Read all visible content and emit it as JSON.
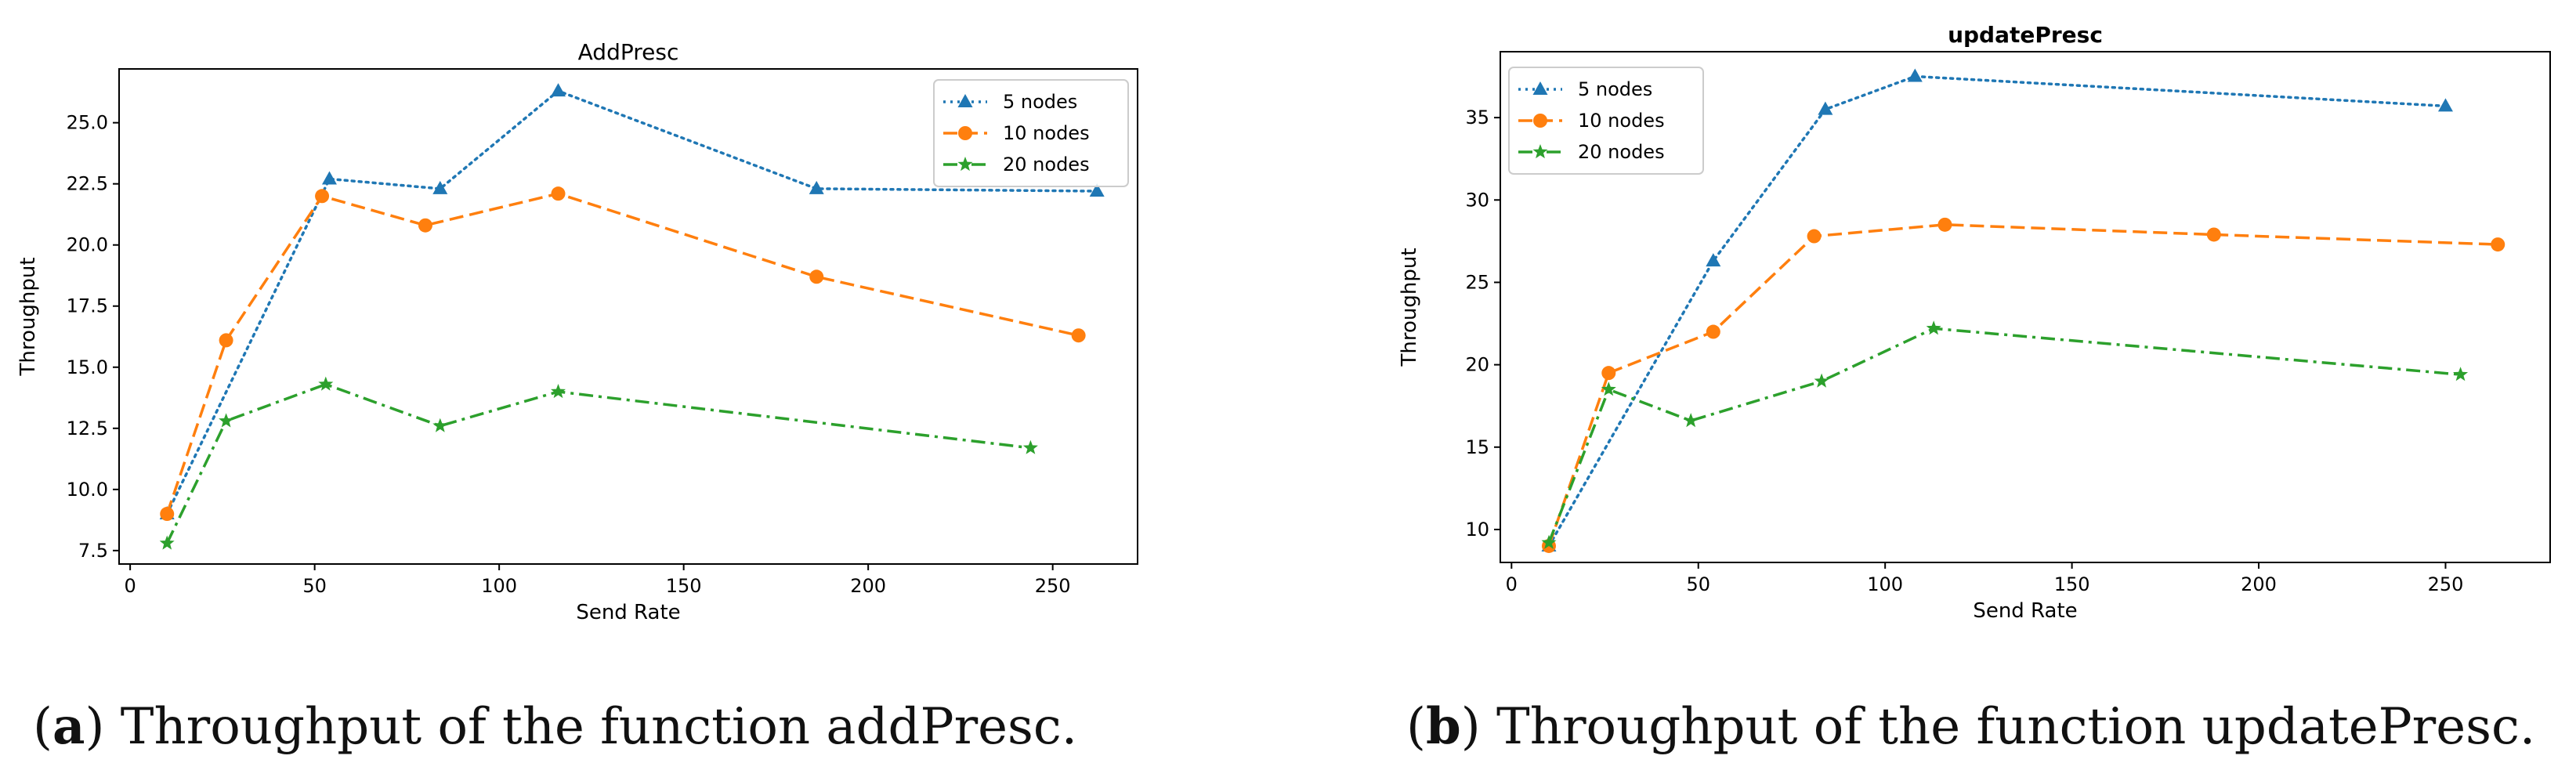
{
  "colors": {
    "s5": "#1f77b4",
    "s10": "#ff7f0e",
    "s20": "#2ca02c"
  },
  "captions": [
    {
      "label": "a",
      "open": "(",
      "close": ")",
      "text": " Throughput of the function addPresc."
    },
    {
      "label": "b",
      "open": "(",
      "close": ")",
      "text": " Throughput of the function updatePresc."
    }
  ],
  "chart_data": [
    {
      "type": "line",
      "title": "AddPresc",
      "xlabel": "Send Rate",
      "ylabel": "Throughput",
      "xlim": [
        -3,
        273
      ],
      "ylim": [
        6.95,
        27.2
      ],
      "xticks": [
        0,
        50,
        100,
        150,
        200,
        250
      ],
      "xtick_labels": [
        "0",
        "50",
        "100",
        "150",
        "200",
        "250"
      ],
      "yticks": [
        7.5,
        10.0,
        12.5,
        15.0,
        17.5,
        20.0,
        22.5,
        25.0
      ],
      "ytick_labels": [
        "7.5",
        "10.0",
        "12.5",
        "15.0",
        "17.5",
        "20.0",
        "22.5",
        "25.0"
      ],
      "legend_position": "top-right",
      "series": [
        {
          "name": "5 nodes",
          "marker": "triangle",
          "style": "dotted",
          "color_key": "s5",
          "x": [
            10,
            54,
            84,
            116,
            186,
            262
          ],
          "y": [
            9.0,
            22.7,
            22.3,
            26.3,
            22.3,
            22.2
          ]
        },
        {
          "name": "10 nodes",
          "marker": "circle",
          "style": "dashed",
          "color_key": "s10",
          "x": [
            10,
            26,
            52,
            80,
            116,
            186,
            257
          ],
          "y": [
            9.0,
            16.1,
            22.0,
            20.8,
            22.1,
            18.7,
            16.3
          ]
        },
        {
          "name": "20 nodes",
          "marker": "star",
          "style": "dashdot",
          "color_key": "s20",
          "x": [
            10,
            26,
            53,
            84,
            116,
            244
          ],
          "y": [
            7.8,
            12.8,
            14.3,
            12.6,
            14.0,
            11.7
          ]
        }
      ]
    },
    {
      "type": "line",
      "title": "updatePresc",
      "xlabel": "Send Rate",
      "ylabel": "Throughput",
      "xlim": [
        -3,
        278
      ],
      "ylim": [
        8.0,
        39.0
      ],
      "xticks": [
        0,
        50,
        100,
        150,
        200,
        250
      ],
      "xtick_labels": [
        "0",
        "50",
        "100",
        "150",
        "200",
        "250"
      ],
      "yticks": [
        10,
        15,
        20,
        25,
        30,
        35
      ],
      "ytick_labels": [
        "10",
        "15",
        "20",
        "25",
        "30",
        "35"
      ],
      "legend_position": "top-left",
      "series": [
        {
          "name": "5 nodes",
          "marker": "triangle",
          "style": "dotted",
          "color_key": "s5",
          "x": [
            10,
            54,
            84,
            108,
            250
          ],
          "y": [
            9.0,
            26.3,
            35.5,
            37.5,
            35.7
          ]
        },
        {
          "name": "10 nodes",
          "marker": "circle",
          "style": "dashed",
          "color_key": "s10",
          "x": [
            10,
            26,
            54,
            81,
            116,
            188,
            264
          ],
          "y": [
            9.0,
            19.5,
            22.0,
            27.8,
            28.5,
            27.9,
            27.3
          ]
        },
        {
          "name": "20 nodes",
          "marker": "star",
          "style": "dashdot",
          "color_key": "s20",
          "x": [
            10,
            26,
            48,
            83,
            113,
            254
          ],
          "y": [
            9.2,
            18.5,
            16.6,
            19.0,
            22.2,
            19.4
          ]
        }
      ]
    }
  ]
}
